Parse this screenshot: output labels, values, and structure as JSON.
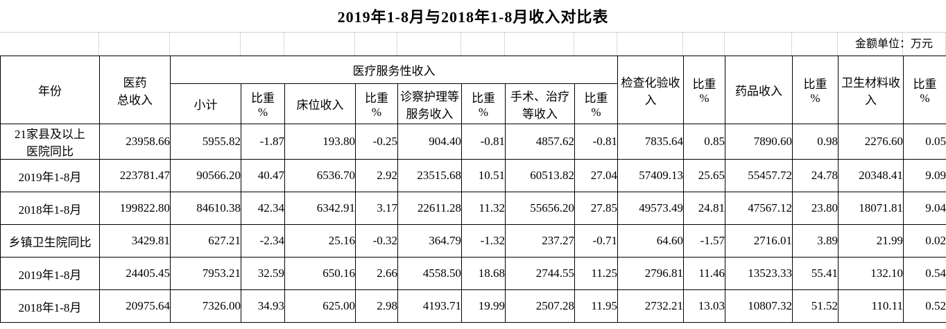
{
  "title": "2019年1-8月与2018年1-8月收入对比表",
  "unit_note": "金额单位：万元",
  "table": {
    "header": {
      "year": "年份",
      "total_revenue": "医药\n总收入",
      "service_group": "医疗服务性收入",
      "subtotal": "小计",
      "ratio": "比重\n%",
      "bed": "床位收入",
      "exam_care": "诊察护理等\n服务收入",
      "surgery": "手术、治疗\n等收入",
      "lab": "检查化验收\n入",
      "drug": "药品收入",
      "material": "卫生材料收\n入"
    },
    "rows": [
      {
        "label": "21家县及以上\n医院同比",
        "cells": [
          "23958.66",
          "5955.82",
          "-1.87",
          "193.80",
          "-0.25",
          "904.40",
          "-0.81",
          "4857.62",
          "-0.81",
          "7835.64",
          "0.85",
          "7890.60",
          "0.98",
          "2276.60",
          "0.05"
        ]
      },
      {
        "label": "2019年1-8月",
        "cells": [
          "223781.47",
          "90566.20",
          "40.47",
          "6536.70",
          "2.92",
          "23515.68",
          "10.51",
          "60513.82",
          "27.04",
          "57409.13",
          "25.65",
          "55457.72",
          "24.78",
          "20348.41",
          "9.09"
        ]
      },
      {
        "label": "2018年1-8月",
        "cells": [
          "199822.80",
          "84610.38",
          "42.34",
          "6342.91",
          "3.17",
          "22611.28",
          "11.32",
          "55656.20",
          "27.85",
          "49573.49",
          "24.81",
          "47567.12",
          "23.80",
          "18071.81",
          "9.04"
        ]
      },
      {
        "label": "乡镇卫生院同比",
        "cells": [
          "3429.81",
          "627.21",
          "-2.34",
          "25.16",
          "-0.32",
          "364.79",
          "-1.32",
          "237.27",
          "-0.71",
          "64.60",
          "-1.57",
          "2716.01",
          "3.89",
          "21.99",
          "0.02"
        ]
      },
      {
        "label": "2019年1-8月",
        "cells": [
          "24405.45",
          "7953.21",
          "32.59",
          "650.16",
          "2.66",
          "4558.50",
          "18.68",
          "2744.55",
          "11.25",
          "2796.81",
          "11.46",
          "13523.33",
          "55.41",
          "132.10",
          "0.54"
        ]
      },
      {
        "label": "2018年1-8月",
        "cells": [
          "20975.64",
          "7326.00",
          "34.93",
          "625.00",
          "2.98",
          "4193.71",
          "19.99",
          "2507.28",
          "11.95",
          "2732.21",
          "13.03",
          "10807.32",
          "51.52",
          "110.11",
          "0.52"
        ]
      }
    ]
  }
}
